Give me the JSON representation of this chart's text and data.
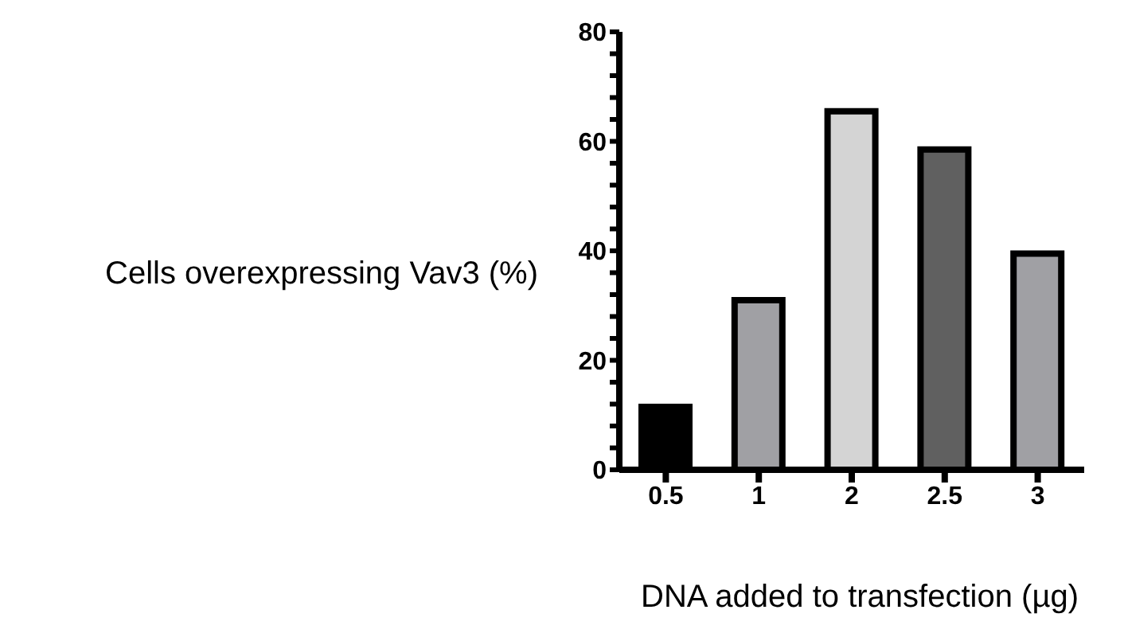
{
  "chart_data": {
    "type": "bar",
    "xlabel": "DNA added to transfection (µg)",
    "ylabel": "Cells overexpressing Vav3 (%)",
    "categories": [
      "0.5",
      "1",
      "2",
      "2.5",
      "3"
    ],
    "values": [
      11.5,
      31,
      65.5,
      58.5,
      39.5
    ],
    "colors": [
      "#000000",
      "#a0a0a4",
      "#d4d4d4",
      "#606060",
      "#a0a0a4"
    ],
    "ylim": [
      0,
      80
    ],
    "yticks": [
      0,
      {
        "value": 4,
        "label": null
      },
      {
        "value": 8,
        "label": null
      },
      {
        "value": 12,
        "label": null
      },
      {
        "value": 16,
        "label": null
      },
      20,
      {
        "value": 24,
        "label": null
      },
      {
        "value": 28,
        "label": null
      },
      {
        "value": 32,
        "label": null
      },
      {
        "value": 36,
        "label": null
      },
      40,
      {
        "value": 44,
        "label": null
      },
      {
        "value": 48,
        "label": null
      },
      {
        "value": 52,
        "label": null
      },
      {
        "value": 56,
        "label": null
      },
      60,
      {
        "value": 64,
        "label": null
      },
      {
        "value": 68,
        "label": null
      },
      {
        "value": 72,
        "label": null
      },
      {
        "value": 76,
        "label": null
      },
      80
    ],
    "grid": false,
    "legend": false
  }
}
